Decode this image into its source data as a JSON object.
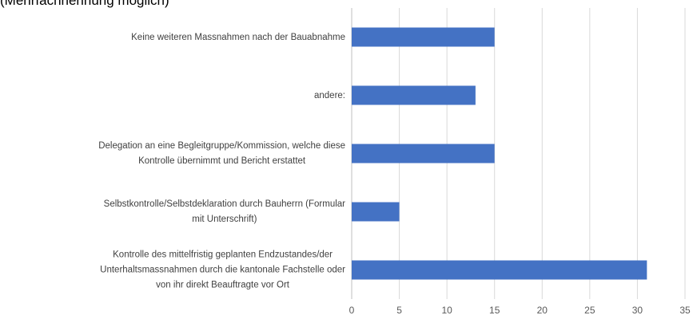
{
  "chart_data": {
    "type": "barh",
    "subtitle": "(Mehrfachnennung möglich)",
    "categories": [
      "Keine weiteren Massnahmen nach der Bauabnahme",
      "andere:",
      "Delegation an eine Begleitgruppe/Kommission, welche diese\nKontrolle übernimmt und Bericht erstattet",
      "Selbstkontrolle/Selbstdeklaration durch Bauherrn (Formular\nmit Unterschrift)",
      "Kontrolle des mittelfristig geplanten Endzustandes/der\nUnterhaltsmassnahmen durch die kantonale Fachstelle oder\nvon ihr direkt Beauftragte vor Ort"
    ],
    "values": [
      15,
      13,
      15,
      5,
      31
    ],
    "color": "#4472c4",
    "xlim": [
      0,
      35
    ],
    "xticks": [
      0,
      5,
      10,
      15,
      20,
      25,
      30,
      35
    ],
    "grid": true
  }
}
